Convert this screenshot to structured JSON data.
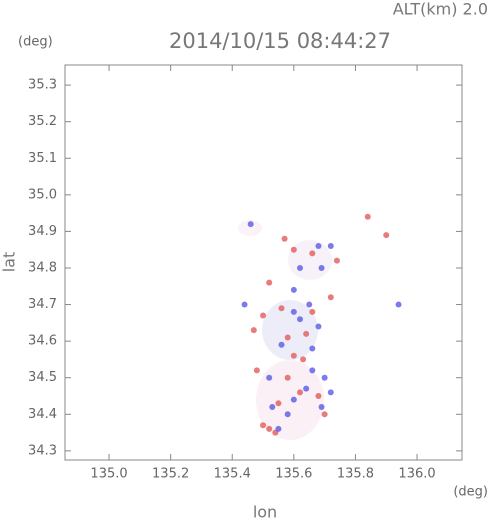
{
  "chart_data": {
    "type": "scatter",
    "altitude_label": "ALT(km) 2.0",
    "title": "2014/10/15 08:44:27",
    "y_unit": "(deg)",
    "x_unit": "(deg)",
    "xlabel": "lon",
    "ylabel": "lat",
    "xlim": [
      134.857,
      136.146
    ],
    "ylim": [
      34.275,
      35.355
    ],
    "xticks": [
      {
        "value": 135.0,
        "label": "135.0"
      },
      135.2,
      135.4,
      135.6,
      135.8,
      {
        "value": 136.0,
        "label": "136.0"
      }
    ],
    "yticks": [
      34.3,
      34.4,
      34.5,
      34.6,
      34.7,
      34.8,
      34.9,
      {
        "value": 35.0,
        "label": "35.0"
      },
      35.1,
      35.2,
      35.3
    ],
    "series": [
      {
        "color": "#e25a5a",
        "x": [
          135.52,
          135.54,
          135.5,
          135.47,
          135.58,
          135.6,
          135.62,
          135.68,
          135.7,
          135.55,
          135.58,
          135.64,
          135.66,
          135.56,
          135.52,
          135.57,
          135.66,
          135.74,
          135.84,
          135.9,
          135.6,
          135.5,
          135.48,
          135.72,
          135.63
        ],
        "y": [
          34.36,
          34.35,
          34.37,
          34.63,
          34.61,
          34.56,
          34.46,
          34.45,
          34.4,
          34.43,
          34.5,
          34.62,
          34.68,
          34.69,
          34.76,
          34.88,
          34.84,
          34.82,
          34.94,
          34.89,
          34.85,
          34.67,
          34.52,
          34.72,
          34.55
        ]
      },
      {
        "color": "#5a5ae6",
        "x": [
          135.62,
          135.6,
          135.65,
          135.68,
          135.66,
          135.7,
          135.64,
          135.58,
          135.53,
          135.6,
          135.69,
          135.94,
          135.44,
          135.62,
          135.69,
          135.68,
          135.72,
          135.56,
          135.66,
          135.52,
          135.46,
          135.6,
          135.72,
          135.55
        ],
        "y": [
          34.66,
          34.68,
          34.7,
          34.64,
          34.52,
          34.5,
          34.47,
          34.4,
          34.42,
          34.44,
          34.42,
          34.7,
          34.7,
          34.8,
          34.8,
          34.86,
          34.86,
          34.59,
          34.58,
          34.5,
          34.92,
          34.74,
          34.46,
          34.36
        ]
      }
    ]
  }
}
